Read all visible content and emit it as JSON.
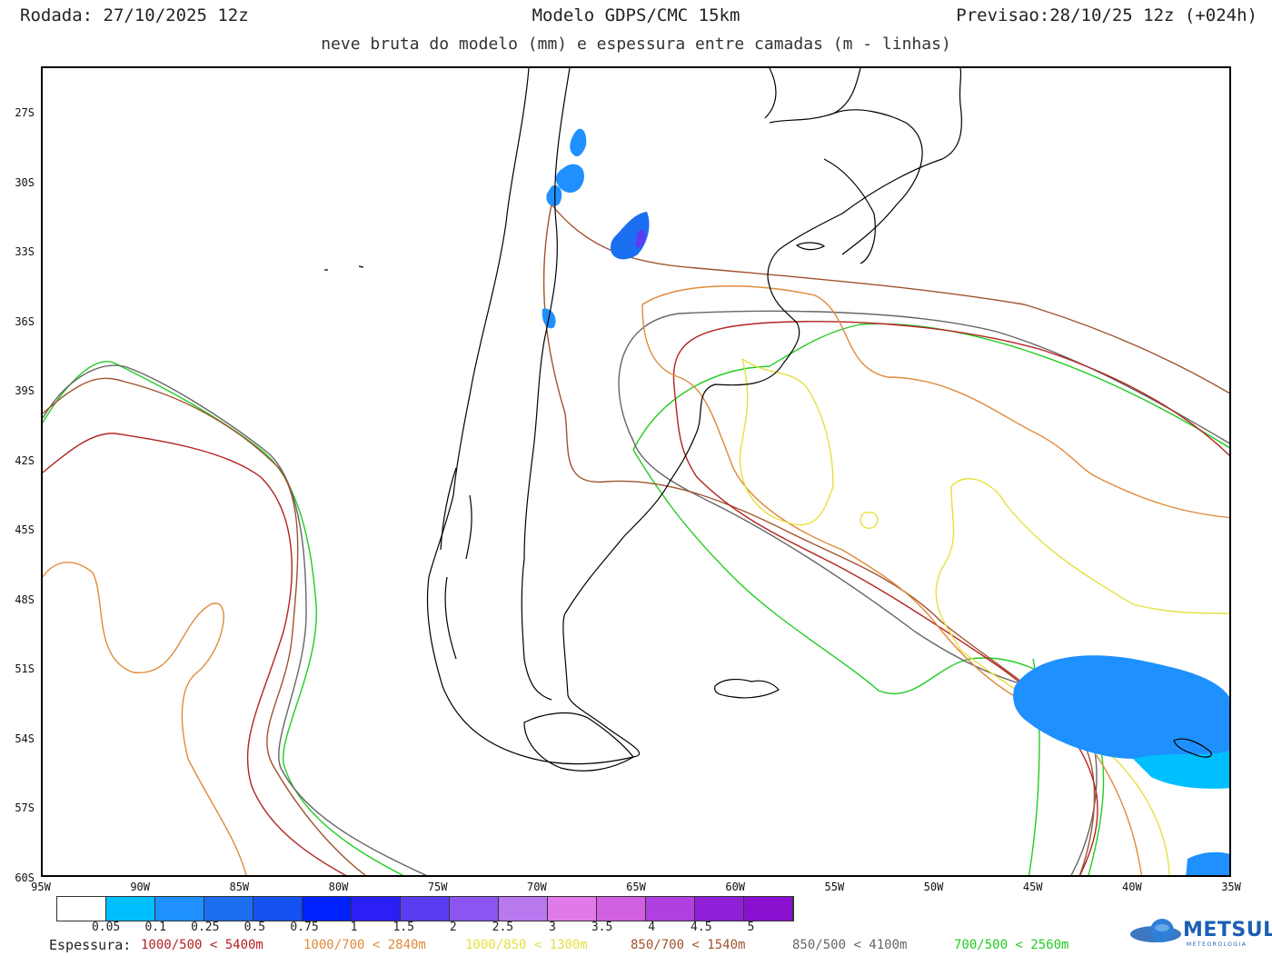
{
  "header": {
    "run": "Rodada: 27/10/2025 12z",
    "model": "Modelo GDPS/CMC 15km",
    "forecast": "Previsao:28/10/25 12z (+024h)",
    "subtitle": "neve bruta do modelo (mm) e espessura entre camadas (m - linhas)"
  },
  "map": {
    "lat_labels": [
      "27S",
      "30S",
      "33S",
      "36S",
      "39S",
      "42S",
      "45S",
      "48S",
      "51S",
      "54S",
      "57S",
      "60S"
    ],
    "lon_labels": [
      "95W",
      "90W",
      "85W",
      "80W",
      "75W",
      "70W",
      "65W",
      "60W",
      "55W",
      "50W",
      "45W",
      "40W",
      "35W"
    ],
    "land_outline_color": "#000000"
  },
  "colorbar": {
    "ticks": [
      "0.05",
      "0.1",
      "0.25",
      "0.5",
      "0.75",
      "1",
      "1.5",
      "2",
      "2.5",
      "3",
      "3.5",
      "4",
      "4.5",
      "5"
    ],
    "colors": [
      "#ffffff",
      "#00bfff",
      "#1e90ff",
      "#1c6ff0",
      "#1550f0",
      "#0022ff",
      "#2a1ff5",
      "#5a3df0",
      "#8a55f0",
      "#b878ee",
      "#e07ae8",
      "#d060e0",
      "#b040e0",
      "#9020d8",
      "#8a10d0"
    ]
  },
  "legend": {
    "title": "Espessura:",
    "items": [
      {
        "label": "1000/500 < 5400m",
        "color": "#b22222"
      },
      {
        "label": "1000/700 < 2840m",
        "color": "#e08a3a"
      },
      {
        "label": "1000/850 < 1300m",
        "color": "#e6e040"
      },
      {
        "label": "850/700 < 1540m",
        "color": "#a0522d"
      },
      {
        "label": "850/500 < 4100m",
        "color": "#666666"
      },
      {
        "label": "700/500 < 2560m",
        "color": "#22cc22"
      }
    ]
  },
  "logo": {
    "name": "METSUL",
    "sub": "METEOROLOGIA"
  }
}
